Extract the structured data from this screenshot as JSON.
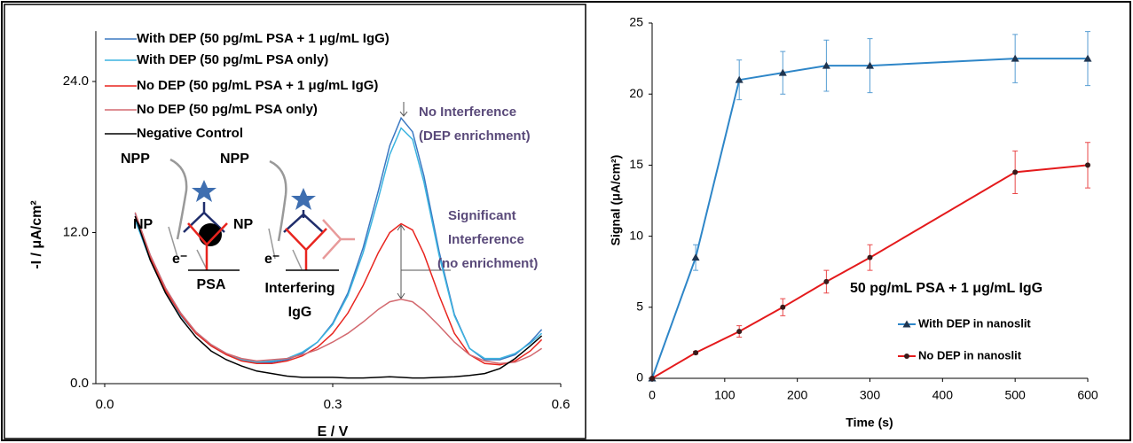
{
  "chart_data": [
    {
      "type": "line",
      "x_label": "E / V",
      "y_label": "-I /  μA/cm²",
      "xlim": [
        0,
        0.6
      ],
      "ylim": [
        0,
        28
      ],
      "xticks": [
        {
          "value": 0,
          "label": "0.0"
        },
        0.3,
        0.6
      ],
      "yticks": [
        {
          "value": 0,
          "label": "0.0"
        },
        {
          "value": 12,
          "label": "12.0"
        },
        {
          "value": 24,
          "label": "24.0"
        }
      ],
      "x": [
        0.04,
        0.06,
        0.08,
        0.1,
        0.12,
        0.14,
        0.16,
        0.18,
        0.2,
        0.22,
        0.24,
        0.26,
        0.28,
        0.3,
        0.32,
        0.34,
        0.36,
        0.375,
        0.39,
        0.405,
        0.42,
        0.44,
        0.46,
        0.48,
        0.5,
        0.52,
        0.54,
        0.56,
        0.575
      ],
      "series": [
        {
          "name": "With DEP (50 pg/mL PSA + 1 μg/mL IgG)",
          "color": "#3b78c2",
          "values": [
            13.5,
            10.2,
            7.6,
            5.6,
            4.1,
            3.1,
            2.4,
            1.9,
            1.7,
            1.7,
            1.9,
            2.4,
            3.3,
            4.8,
            7.2,
            10.8,
            15.3,
            18.9,
            21.1,
            20.0,
            16.5,
            10.5,
            5.5,
            2.8,
            1.9,
            1.9,
            2.3,
            3.3,
            4.3
          ]
        },
        {
          "name": "With DEP (50 pg/mL PSA only)",
          "color": "#3cb4e0",
          "values": [
            13.0,
            9.8,
            7.3,
            5.4,
            4.0,
            3.0,
            2.3,
            1.9,
            1.7,
            1.8,
            2.0,
            2.5,
            3.3,
            4.7,
            7.0,
            10.4,
            14.7,
            18.2,
            20.3,
            19.4,
            16.0,
            10.2,
            5.4,
            2.8,
            2.0,
            2.0,
            2.4,
            3.2,
            4.0
          ]
        },
        {
          "name": "No DEP (50 pg/mL PSA + 1 μg/mL IgG)",
          "color": "#e8251f",
          "values": [
            13.3,
            10.0,
            7.4,
            5.5,
            4.0,
            3.0,
            2.3,
            1.8,
            1.6,
            1.6,
            1.8,
            2.2,
            2.9,
            4.0,
            5.6,
            7.8,
            10.4,
            12.0,
            12.7,
            12.2,
            10.3,
            7.0,
            4.0,
            2.3,
            1.6,
            1.5,
            1.8,
            2.6,
            3.5
          ]
        },
        {
          "name": "No DEP (50 pg/mL PSA only)",
          "color": "#d36a70",
          "values": [
            13.6,
            10.2,
            7.6,
            5.6,
            4.1,
            3.1,
            2.4,
            2.0,
            1.8,
            1.9,
            2.0,
            2.3,
            2.7,
            3.3,
            4.0,
            4.9,
            5.9,
            6.5,
            6.7,
            6.5,
            5.8,
            4.6,
            3.3,
            2.3,
            1.8,
            1.6,
            1.7,
            2.2,
            2.8
          ]
        },
        {
          "name": "Negative Control",
          "color": "#000000",
          "values": [
            13.3,
            9.8,
            7.2,
            5.2,
            3.7,
            2.6,
            1.9,
            1.4,
            1.0,
            0.8,
            0.6,
            0.5,
            0.5,
            0.5,
            0.45,
            0.45,
            0.5,
            0.55,
            0.5,
            0.45,
            0.45,
            0.5,
            0.55,
            0.65,
            0.8,
            1.2,
            2.0,
            3.0,
            3.8
          ]
        }
      ],
      "annotations": [
        "No Interference",
        "(DEP enrichment)",
        "Significant",
        "Interference",
        "(no enrichment)"
      ],
      "schematic_labels": [
        "NPP",
        "NPP",
        "NP",
        "NP",
        "e⁻",
        "e⁻",
        "PSA",
        "Interfering",
        "IgG"
      ]
    },
    {
      "type": "line",
      "x_label": "Time (s)",
      "y_label": "Signal (μA/cm²)",
      "annotation": "50 pg/mL PSA + 1 μg/mL IgG",
      "xlim": [
        0,
        600
      ],
      "ylim": [
        0,
        25
      ],
      "xticks": [
        0,
        100,
        200,
        300,
        400,
        500,
        600
      ],
      "yticks": [
        0,
        5,
        10,
        15,
        20,
        25
      ],
      "x": [
        0,
        60,
        120,
        180,
        240,
        300,
        500,
        600
      ],
      "series": [
        {
          "name": "With DEP in nanoslit",
          "color": "#2e86c8",
          "marker": "triangle",
          "values": [
            0,
            8.5,
            21,
            21.5,
            22,
            22,
            22.5,
            22.5
          ],
          "errors": [
            0,
            0.9,
            1.4,
            1.5,
            1.8,
            1.9,
            1.7,
            1.9
          ]
        },
        {
          "name": "No DEP in nanoslit",
          "color": "#e41a1c",
          "marker": "circle",
          "values": [
            0,
            1.8,
            3.3,
            5.0,
            6.8,
            8.5,
            14.5,
            15.0
          ],
          "errors": [
            0,
            0.1,
            0.4,
            0.6,
            0.8,
            0.9,
            1.5,
            1.6
          ]
        }
      ]
    }
  ]
}
